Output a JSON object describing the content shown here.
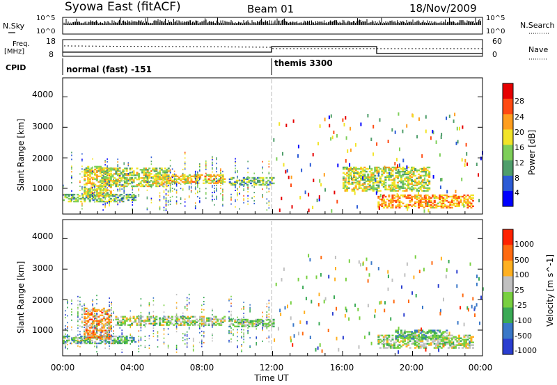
{
  "header": {
    "station": "Syowa East (fitACF)",
    "beam": "Beam 01",
    "date": "18/Nov/2009"
  },
  "noise_panel": {
    "left_label": "N.Sky",
    "right_label": "N.Search",
    "left_ticks": [
      "10^5",
      "10^0"
    ],
    "right_ticks": [
      "10^5",
      "10^0"
    ]
  },
  "freq_panel": {
    "left_label_line1": "Freq.",
    "left_label_line2": "[MHz]",
    "right_label": "Nave",
    "left_ticks": [
      "18",
      "8"
    ],
    "right_ticks": [
      "60",
      "0"
    ]
  },
  "cpid": {
    "label": "CPID",
    "segments": [
      {
        "name": "normal (fast) -151",
        "start_hour": 0
      },
      {
        "name": "themis 3300",
        "start_hour": 12
      }
    ]
  },
  "time_axis": {
    "label": "Time UT",
    "ticks": [
      "00:00",
      "04:00",
      "08:00",
      "12:00",
      "16:00",
      "20:00",
      "00:00"
    ]
  },
  "chart_data": [
    {
      "type": "heatmap",
      "panel": "power",
      "ylabel": "Slant Range [km]",
      "x_range_hours": [
        0,
        24
      ],
      "ylim_km": [
        180,
        4600
      ],
      "y_ticks": [
        "4000",
        "3000",
        "2000",
        "1000"
      ],
      "colorbar_label": "Power [dB]",
      "colorbar_ticks": [
        "28",
        "24",
        "20",
        "16",
        "12",
        "8",
        "4"
      ],
      "colors": [
        "#0000ff",
        "#2c5bd6",
        "#4f9e6b",
        "#7ecf59",
        "#f2e428",
        "#ff9e1e",
        "#ff4a12",
        "#e60000"
      ],
      "echo_bands": [
        {
          "t0": 0.0,
          "t1": 4.2,
          "r0": 550,
          "r1": 800,
          "level": 0.4
        },
        {
          "t0": 1.2,
          "t1": 2.8,
          "r0": 700,
          "r1": 1700,
          "level": 0.55
        },
        {
          "t0": 2.2,
          "t1": 6.0,
          "r0": 1050,
          "r1": 1650,
          "level": 0.5
        },
        {
          "t0": 5.2,
          "t1": 9.2,
          "r0": 1150,
          "r1": 1450,
          "level": 0.6
        },
        {
          "t0": 9.5,
          "t1": 12.0,
          "r0": 1100,
          "r1": 1350,
          "level": 0.35
        },
        {
          "t0": 18.0,
          "t1": 23.5,
          "r0": 350,
          "r1": 800,
          "level": 0.7
        },
        {
          "t0": 16.0,
          "t1": 21.0,
          "r0": 900,
          "r1": 1700,
          "level": 0.5
        }
      ]
    },
    {
      "type": "heatmap",
      "panel": "velocity",
      "ylabel": "Slant Range [km]",
      "x_range_hours": [
        0,
        24
      ],
      "ylim_km": [
        180,
        4600
      ],
      "y_ticks": [
        "4000",
        "3000",
        "2000",
        "1000"
      ],
      "colorbar_label": "Velocity [m s^-1]",
      "colorbar_ticks": [
        "1000",
        "500",
        "100",
        "25",
        "-25",
        "-100",
        "-500",
        "-1000"
      ],
      "colors": [
        "#2a3ed0",
        "#3a78c8",
        "#3aaa55",
        "#78d040",
        "#c0c0c0",
        "#ffb020",
        "#ff6a10",
        "#ff2200"
      ],
      "echo_bands": [
        {
          "t0": 0.0,
          "t1": 4.2,
          "r0": 550,
          "r1": 800,
          "level": 0.35
        },
        {
          "t0": 1.2,
          "t1": 2.8,
          "r0": 700,
          "r1": 1700,
          "level": 0.75
        },
        {
          "t0": 3.0,
          "t1": 9.2,
          "r0": 1150,
          "r1": 1450,
          "level": 0.5
        },
        {
          "t0": 9.5,
          "t1": 12.0,
          "r0": 1100,
          "r1": 1350,
          "level": 0.45
        },
        {
          "t0": 18.0,
          "t1": 23.5,
          "r0": 400,
          "r1": 850,
          "level": 0.5
        },
        {
          "t0": 19.0,
          "t1": 22.0,
          "r0": 700,
          "r1": 1000,
          "level": 0.35
        }
      ]
    }
  ]
}
